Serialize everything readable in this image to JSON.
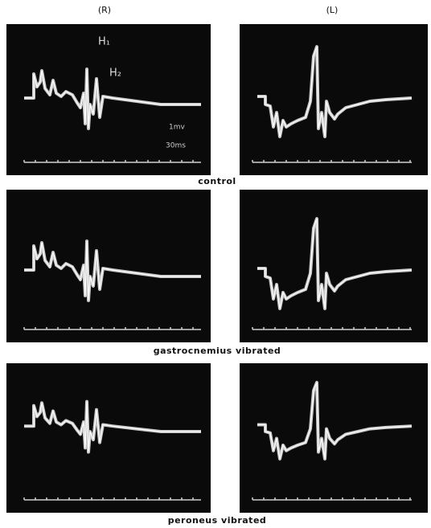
{
  "column_headers": [
    "(R)",
    "(L)"
  ],
  "rows": [
    {
      "label": "control"
    },
    {
      "label": "gastrocnemius vibrated"
    },
    {
      "label": "peroneus vibrated"
    }
  ],
  "annotations": {
    "h1": "H₁",
    "h2": "H₂",
    "amplitude": "1mv",
    "time": "30ms"
  }
}
